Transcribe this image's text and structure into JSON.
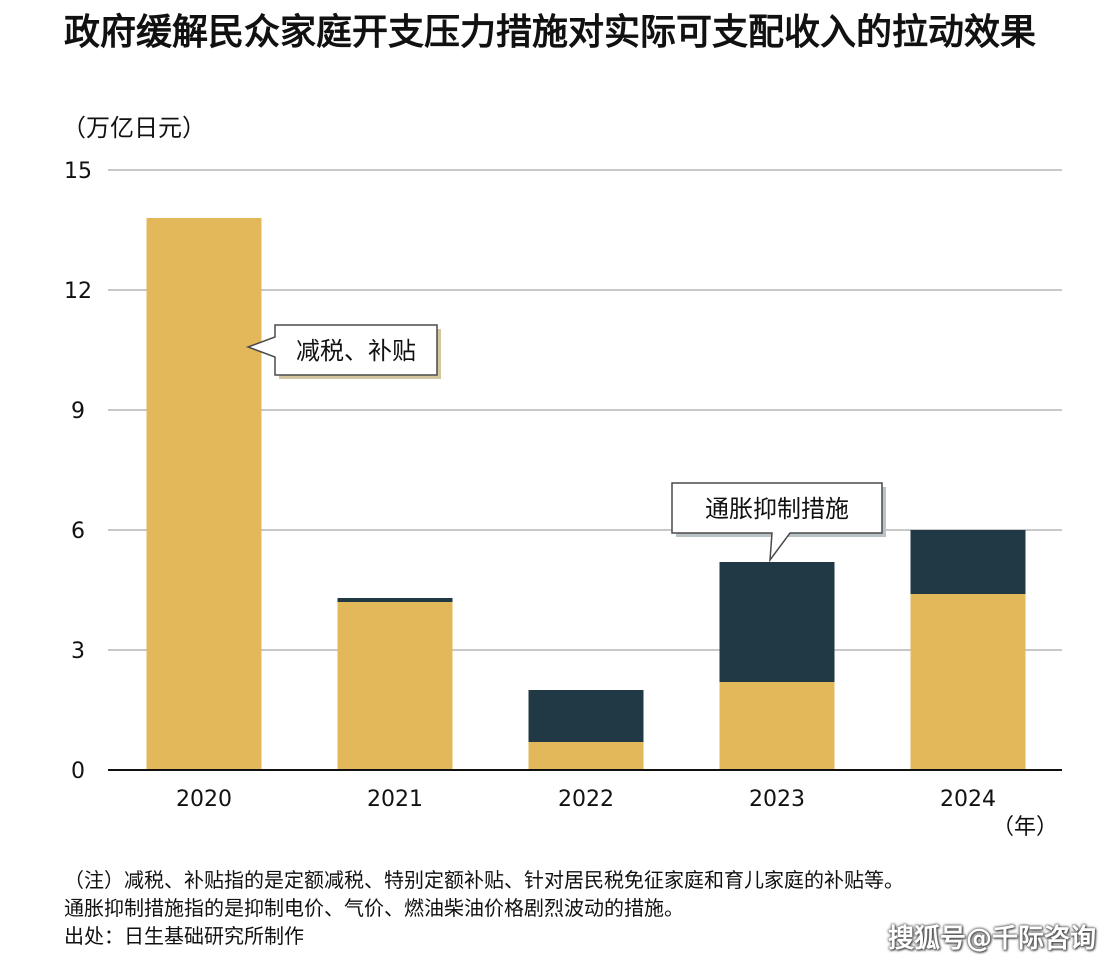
{
  "title": "政府缓解民众家庭开支压力措施对实际可支配收入的拉动效果",
  "colors": {
    "tax_subsidy": "#e2b85a",
    "inflation": "#213845",
    "grid": "#c8c8c8",
    "axis": "#111111"
  },
  "chart_data": {
    "type": "bar",
    "stacked": true,
    "title": "政府缓解民众家庭开支压力措施对实际可支配收入的拉动效果",
    "ylabel": "（万亿日元）",
    "xlabel": "（年）",
    "categories": [
      "2020",
      "2021",
      "2022",
      "2023",
      "2024"
    ],
    "ylim": [
      0,
      15
    ],
    "yticks": [
      0,
      3,
      6,
      9,
      12,
      15
    ],
    "grid": true,
    "series": [
      {
        "name": "减税、补贴",
        "values": [
          13.8,
          4.2,
          0.7,
          2.2,
          4.4
        ]
      },
      {
        "name": "通胀抑制措施",
        "values": [
          0,
          0.1,
          1.3,
          3.0,
          1.6
        ]
      }
    ],
    "annotations": [
      {
        "text": "减税、补贴",
        "target_category": "2020",
        "target_series": "减税、补贴"
      },
      {
        "text": "通胀抑制措施",
        "target_category": "2023",
        "target_series": "通胀抑制措施"
      }
    ]
  },
  "notes": [
    "（注）减税、补贴指的是定额减税、特别定额补贴、针对居民税免征家庭和育儿家庭的补贴等。",
    "通胀抑制措施指的是抑制电价、气价、燃油柴油价格剧烈波动的措施。",
    "出处：日生基础研究所制作"
  ],
  "watermark": "搜狐号@千际咨询"
}
